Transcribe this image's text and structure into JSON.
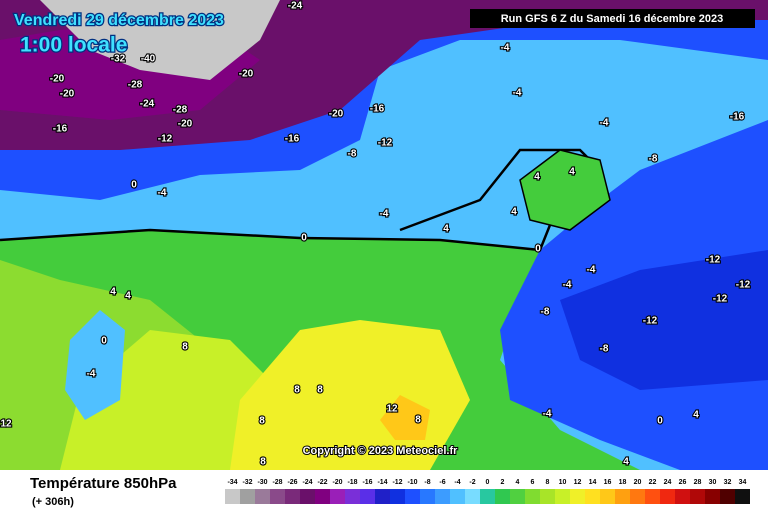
{
  "header": {
    "valid_date": "Vendredi 29 décembre 2023",
    "local_time": "1:00 locale",
    "run": "Run GFS 6 Z du Samedi 16 décembre 2023"
  },
  "copyright": "Copyright © 2023 Meteociel.fr",
  "legend": {
    "title": "Température 850hPa",
    "lead_time": "(+ 306h)",
    "scale": [
      -34,
      -32,
      -30,
      -28,
      -26,
      -24,
      -22,
      -20,
      -18,
      -16,
      -14,
      -12,
      -10,
      -8,
      -6,
      -4,
      -2,
      0,
      2,
      4,
      6,
      8,
      10,
      12,
      14,
      16,
      18,
      20,
      22,
      24,
      26,
      28,
      30,
      32,
      34
    ],
    "colors": [
      "#c8c8c8",
      "#a0a0a0",
      "#9a7a9a",
      "#8a4a8a",
      "#7a2a7a",
      "#6a106a",
      "#800080",
      "#9a1fb8",
      "#7a2fd8",
      "#5a2fe8",
      "#2020c8",
      "#1030e0",
      "#1e50ff",
      "#2878ff",
      "#3c9cff",
      "#50c0ff",
      "#78dcff",
      "#28c8a0",
      "#30c850",
      "#50d040",
      "#80dc30",
      "#a8e428",
      "#c8f028",
      "#f0f028",
      "#ffe020",
      "#ffc818",
      "#ffa010",
      "#ff7810",
      "#ff5010",
      "#f02810",
      "#d01010",
      "#b00808",
      "#880000",
      "#500000",
      "#101010"
    ]
  },
  "contour_labels": [
    -24,
    -20,
    -20,
    -32,
    -40,
    -28,
    -24,
    -28,
    -20,
    -20,
    -16,
    -12,
    -16,
    -20,
    -16,
    -8,
    -12,
    -4,
    -4,
    -4,
    -16,
    0,
    -4,
    0,
    -4,
    4,
    4,
    -8,
    -12,
    -12,
    -12,
    -12,
    -8,
    -4,
    -4,
    -4,
    -8,
    0,
    4,
    4,
    4,
    8,
    4,
    0,
    -4,
    8,
    8,
    12,
    8,
    4,
    4,
    0,
    8,
    8,
    12
  ]
}
